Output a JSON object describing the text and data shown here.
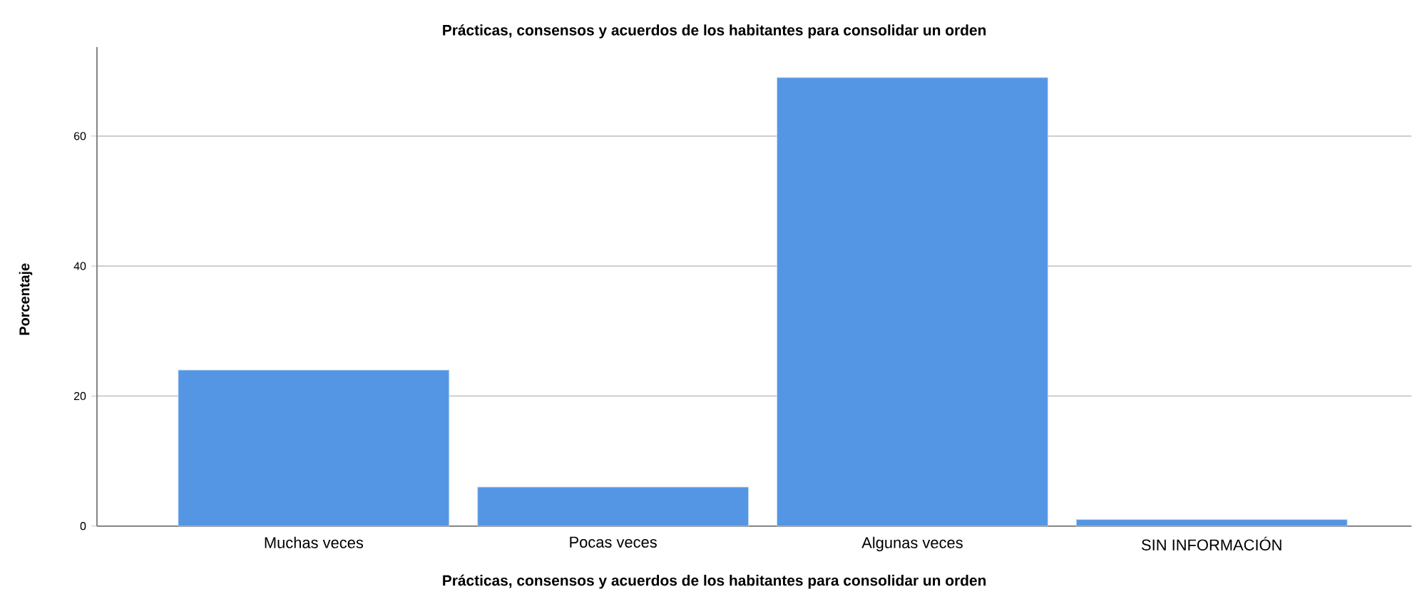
{
  "chart_data": {
    "type": "bar",
    "title": "Prácticas, consensos y acuerdos de los habitantes para consolidar un orden",
    "xlabel": "Prácticas, consensos y acuerdos de los habitantes para consolidar un orden",
    "ylabel": "Porcentaje",
    "categories": [
      "Muchas veces",
      "Pocas veces",
      "Algunas veces",
      "SIN INFORMACIÓN"
    ],
    "values": [
      24,
      6,
      69,
      1
    ],
    "color": "#5596e4",
    "ylim": [
      0,
      73.7
    ],
    "yticks": [
      0,
      20,
      40,
      60
    ],
    "grid": "y"
  }
}
